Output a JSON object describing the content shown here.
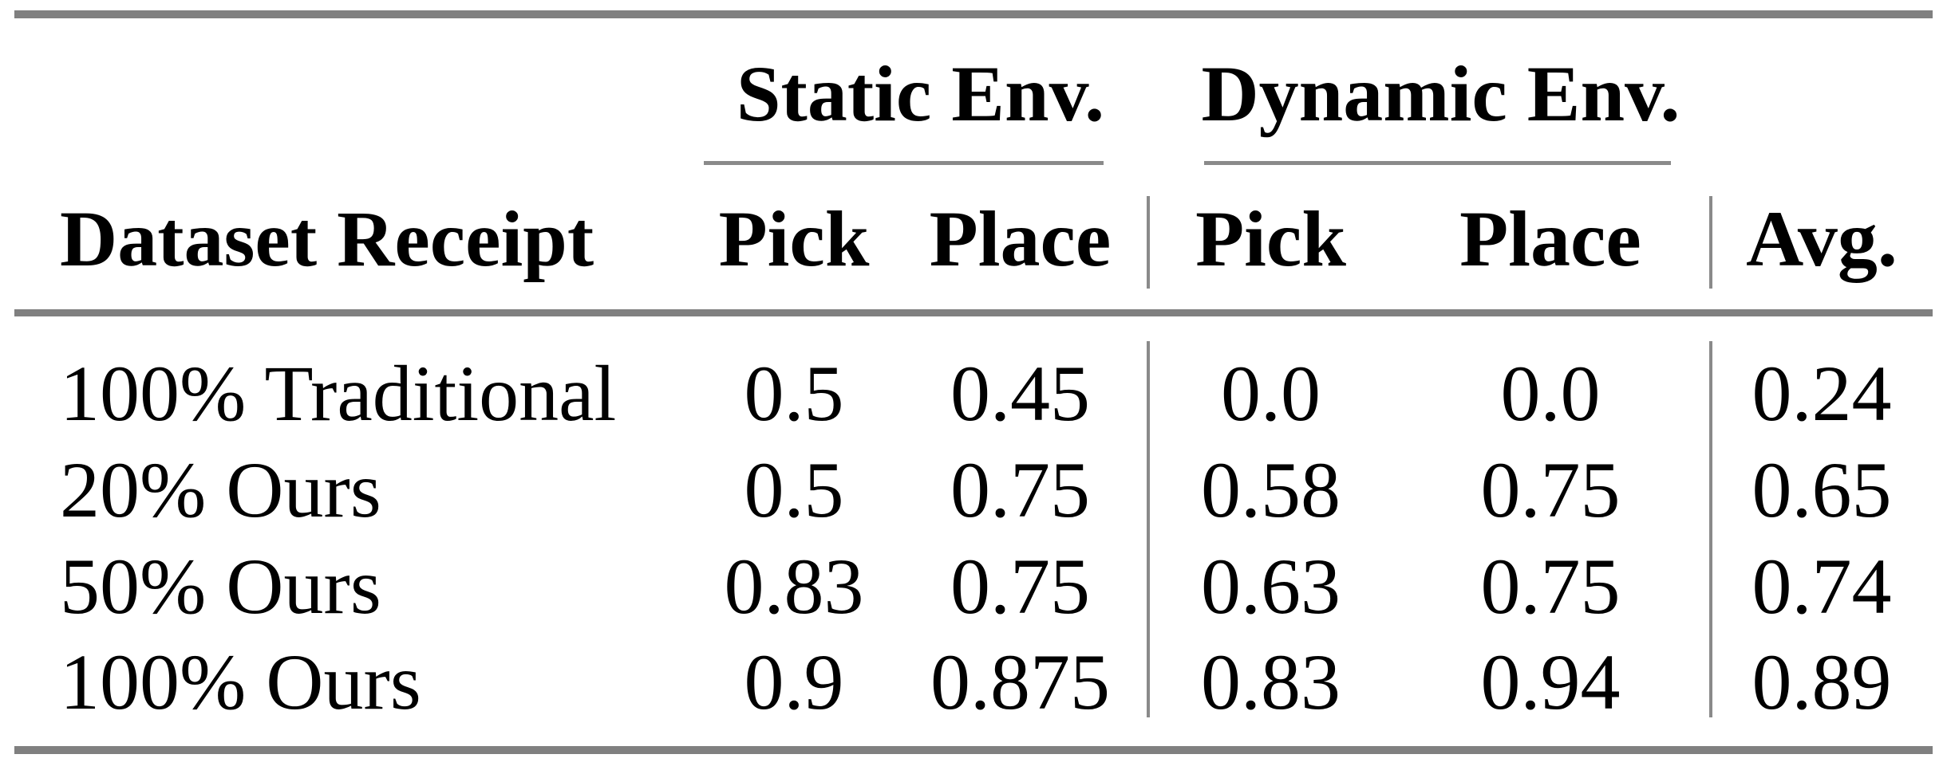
{
  "table": {
    "row_header": "Dataset Receipt",
    "groups": [
      {
        "label": "Static Env.",
        "sub_columns": [
          "Pick",
          "Place"
        ]
      },
      {
        "label": "Dynamic Env.",
        "sub_columns": [
          "Pick",
          "Place"
        ]
      }
    ],
    "avg_header": "Avg.",
    "rows": [
      {
        "label": "100% Traditional",
        "values": [
          "0.5",
          "0.45",
          "0.0",
          "0.0",
          "0.24"
        ]
      },
      {
        "label": "20% Ours",
        "values": [
          "0.5",
          "0.75",
          "0.58",
          "0.75",
          "0.65"
        ]
      },
      {
        "label": "50% Ours",
        "values": [
          "0.83",
          "0.75",
          "0.63",
          "0.75",
          "0.74"
        ]
      },
      {
        "label": "100% Ours",
        "values": [
          "0.9",
          "0.875",
          "0.83",
          "0.94",
          "0.89"
        ]
      }
    ]
  },
  "colors": {
    "rule_gray": "#808080",
    "text": "#000000",
    "background": "#ffffff"
  }
}
